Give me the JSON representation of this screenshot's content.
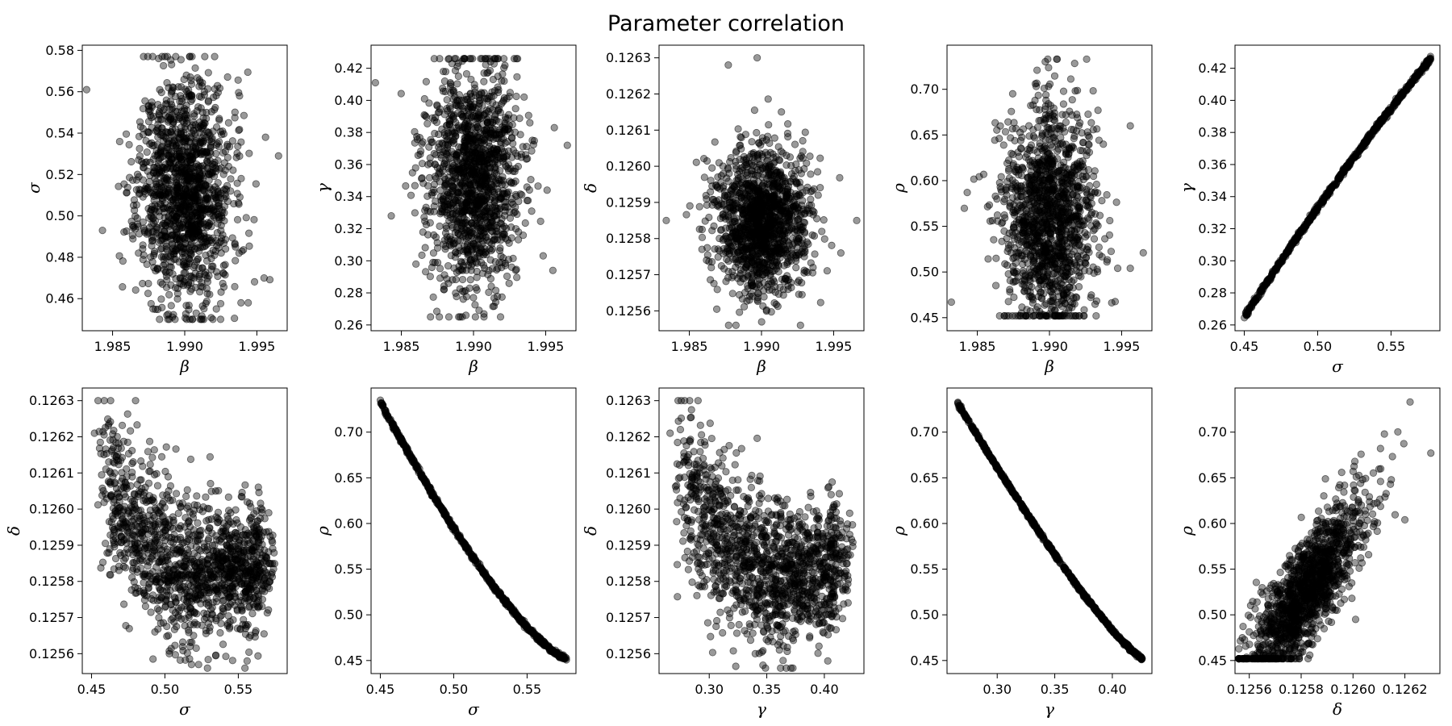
{
  "figure": {
    "title": "Parameter correlation"
  },
  "chart_data": [
    {
      "type": "scatter",
      "xlabel": "β",
      "ylabel": "σ",
      "xlim": [
        1.9829,
        1.9971
      ],
      "ylim": [
        0.4445,
        0.5825
      ],
      "xticks": [
        1.985,
        1.99,
        1.995
      ],
      "xtick_labels": [
        "1.985",
        "1.990",
        "1.995"
      ],
      "yticks": [
        0.46,
        0.48,
        0.5,
        0.52,
        0.54,
        0.56,
        0.58
      ],
      "ytick_labels": [
        "0.46",
        "0.48",
        "0.50",
        "0.52",
        "0.54",
        "0.56",
        "0.58"
      ],
      "gen": {
        "kind": "blob",
        "seed": 11,
        "n": 1400,
        "cx": 1.99,
        "sx": 0.0016,
        "cy": 0.512,
        "sy": 0.027,
        "ymin": 0.45,
        "ymax": 0.577
      },
      "points": [
        [
          1.9832,
          0.561
        ],
        [
          1.9965,
          0.529
        ],
        [
          1.9956,
          0.538
        ],
        [
          1.9955,
          0.47
        ],
        [
          1.9843,
          0.493
        ],
        [
          1.9938,
          0.558
        ],
        [
          1.9939,
          0.458
        ],
        [
          1.9944,
          0.458
        ]
      ]
    },
    {
      "type": "scatter",
      "xlabel": "β",
      "ylabel": "γ",
      "xlim": [
        1.9829,
        1.9971
      ],
      "ylim": [
        0.2564,
        0.4344
      ],
      "xticks": [
        1.985,
        1.99,
        1.995
      ],
      "xtick_labels": [
        "1.985",
        "1.990",
        "1.995"
      ],
      "yticks": [
        0.26,
        0.28,
        0.3,
        0.32,
        0.34,
        0.36,
        0.38,
        0.4,
        0.42
      ],
      "ytick_labels": [
        "0.26",
        "0.28",
        "0.30",
        "0.32",
        "0.34",
        "0.36",
        "0.38",
        "0.40",
        "0.42"
      ],
      "gen": {
        "kind": "blob",
        "seed": 23,
        "n": 1400,
        "cx": 1.99,
        "sx": 0.0016,
        "cy": 0.35,
        "sy": 0.035,
        "ymin": 0.265,
        "ymax": 0.426
      },
      "points": [
        [
          1.9832,
          0.411
        ],
        [
          1.9965,
          0.372
        ],
        [
          1.9956,
          0.383
        ],
        [
          1.9955,
          0.294
        ],
        [
          1.9843,
          0.328
        ],
        [
          1.9951,
          0.344
        ]
      ]
    },
    {
      "type": "scatter",
      "xlabel": "β",
      "ylabel": "δ",
      "xlim": [
        1.9829,
        1.9971
      ],
      "ylim": [
        0.125545,
        0.126335
      ],
      "xticks": [
        1.985,
        1.99,
        1.995
      ],
      "xtick_labels": [
        "1.985",
        "1.990",
        "1.995"
      ],
      "yticks": [
        0.1256,
        0.1257,
        0.1258,
        0.1259,
        0.126,
        0.1261,
        0.1262,
        0.1263
      ],
      "ytick_labels": [
        "0.1256",
        "0.1257",
        "0.1258",
        "0.1259",
        "0.1260",
        "0.1261",
        "0.1262",
        "0.1263"
      ],
      "gen": {
        "kind": "blob",
        "seed": 37,
        "n": 1400,
        "cx": 1.99,
        "sx": 0.0016,
        "cy": 0.12585,
        "sy": 0.0001,
        "ymin": 0.12556,
        "ymax": 0.1263
      },
      "points": [
        [
          1.9897,
          0.1263
        ],
        [
          1.9877,
          0.12628
        ],
        [
          1.9834,
          0.12585
        ],
        [
          1.9966,
          0.12585
        ],
        [
          1.9955,
          0.12576
        ],
        [
          1.9927,
          0.12556
        ]
      ]
    },
    {
      "type": "scatter",
      "xlabel": "β",
      "ylabel": "ρ",
      "xlim": [
        1.9829,
        1.9971
      ],
      "ylim": [
        0.4357,
        0.7483
      ],
      "xticks": [
        1.985,
        1.99,
        1.995
      ],
      "xtick_labels": [
        "1.985",
        "1.990",
        "1.995"
      ],
      "yticks": [
        0.45,
        0.5,
        0.55,
        0.6,
        0.65,
        0.7
      ],
      "ytick_labels": [
        "0.45",
        "0.50",
        "0.55",
        "0.60",
        "0.65",
        "0.70"
      ],
      "gen": {
        "kind": "blob",
        "seed": 41,
        "n": 1400,
        "cx": 1.99,
        "sx": 0.0016,
        "cy": 0.56,
        "sy": 0.06,
        "ymin": 0.452,
        "ymax": 0.733
      },
      "points": [
        [
          1.9832,
          0.467
        ],
        [
          1.9965,
          0.521
        ],
        [
          1.9956,
          0.504
        ],
        [
          1.9956,
          0.66
        ],
        [
          1.9843,
          0.587
        ],
        [
          1.9905,
          0.733
        ]
      ]
    },
    {
      "type": "scatter",
      "xlabel": "σ",
      "ylabel": "γ",
      "xlim": [
        0.4437,
        0.5833
      ],
      "ylim": [
        0.2564,
        0.4344
      ],
      "xticks": [
        0.45,
        0.5,
        0.55
      ],
      "xtick_labels": [
        "0.45",
        "0.50",
        "0.55"
      ],
      "yticks": [
        0.26,
        0.28,
        0.3,
        0.32,
        0.34,
        0.36,
        0.38,
        0.4,
        0.42
      ],
      "ytick_labels": [
        "0.26",
        "0.28",
        "0.30",
        "0.32",
        "0.34",
        "0.36",
        "0.38",
        "0.40",
        "0.42"
      ],
      "gen": {
        "kind": "curve",
        "seed": 53,
        "n": 700,
        "xmin": 0.45,
        "xmax": 0.577,
        "f": "sg",
        "noise": 0.0008
      },
      "points": []
    },
    {
      "type": "scatter",
      "xlabel": "σ",
      "ylabel": "δ",
      "xlim": [
        0.4437,
        0.5833
      ],
      "ylim": [
        0.125545,
        0.126335
      ],
      "xticks": [
        0.45,
        0.5,
        0.55
      ],
      "xtick_labels": [
        "0.45",
        "0.50",
        "0.55"
      ],
      "yticks": [
        0.1256,
        0.1257,
        0.1258,
        0.1259,
        0.126,
        0.1261,
        0.1262,
        0.1263
      ],
      "ytick_labels": [
        "0.1256",
        "0.1257",
        "0.1258",
        "0.1259",
        "0.1260",
        "0.1261",
        "0.1262",
        "0.1263"
      ],
      "gen": {
        "kind": "ushape",
        "seed": 61,
        "n": 1400,
        "xmin": 0.45,
        "xmax": 0.577,
        "f": "sd",
        "noise": 8e-05
      },
      "points": [
        [
          0.463,
          0.1263
        ],
        [
          0.452,
          0.12621
        ],
        [
          0.503,
          0.1256
        ],
        [
          0.529,
          0.12556
        ],
        [
          0.556,
          0.12558
        ]
      ]
    },
    {
      "type": "scatter",
      "xlabel": "σ",
      "ylabel": "ρ",
      "xlim": [
        0.4437,
        0.5833
      ],
      "ylim": [
        0.4357,
        0.7483
      ],
      "xticks": [
        0.45,
        0.5,
        0.55
      ],
      "xtick_labels": [
        "0.45",
        "0.50",
        "0.55"
      ],
      "yticks": [
        0.45,
        0.5,
        0.55,
        0.6,
        0.65,
        0.7
      ],
      "ytick_labels": [
        "0.45",
        "0.50",
        "0.55",
        "0.60",
        "0.65",
        "0.70"
      ],
      "gen": {
        "kind": "curve",
        "seed": 71,
        "n": 700,
        "xmin": 0.45,
        "xmax": 0.577,
        "f": "sr",
        "noise": 0.0012
      },
      "points": []
    },
    {
      "type": "scatter",
      "xlabel": "γ",
      "ylabel": "δ",
      "xlim": [
        0.2564,
        0.4344
      ],
      "ylim": [
        0.125545,
        0.126335
      ],
      "xticks": [
        0.3,
        0.35,
        0.4
      ],
      "xtick_labels": [
        "0.30",
        "0.35",
        "0.40"
      ],
      "yticks": [
        0.1256,
        0.1257,
        0.1258,
        0.1259,
        0.126,
        0.1261,
        0.1262,
        0.1263
      ],
      "ytick_labels": [
        "0.1256",
        "0.1257",
        "0.1258",
        "0.1259",
        "0.1260",
        "0.1261",
        "0.1262",
        "0.1263"
      ],
      "gen": {
        "kind": "ushape",
        "seed": 83,
        "n": 1400,
        "xmin": 0.265,
        "xmax": 0.426,
        "f": "gd",
        "noise": 8e-05
      },
      "points": [
        [
          0.283,
          0.1263
        ],
        [
          0.266,
          0.12621
        ],
        [
          0.34,
          0.1256
        ],
        [
          0.371,
          0.12556
        ],
        [
          0.403,
          0.12558
        ]
      ]
    },
    {
      "type": "scatter",
      "xlabel": "γ",
      "ylabel": "ρ",
      "xlim": [
        0.2564,
        0.4344
      ],
      "ylim": [
        0.4357,
        0.7483
      ],
      "xticks": [
        0.3,
        0.35,
        0.4
      ],
      "xtick_labels": [
        "0.30",
        "0.35",
        "0.40"
      ],
      "yticks": [
        0.45,
        0.5,
        0.55,
        0.6,
        0.65,
        0.7
      ],
      "ytick_labels": [
        "0.45",
        "0.50",
        "0.55",
        "0.60",
        "0.65",
        "0.70"
      ],
      "gen": {
        "kind": "curve",
        "seed": 97,
        "n": 700,
        "xmin": 0.265,
        "xmax": 0.426,
        "f": "gr",
        "noise": 0.001
      },
      "points": []
    },
    {
      "type": "scatter",
      "xlabel": "δ",
      "ylabel": "ρ",
      "xlim": [
        0.125545,
        0.126335
      ],
      "ylim": [
        0.4357,
        0.7483
      ],
      "xticks": [
        0.1256,
        0.1258,
        0.126,
        0.1262
      ],
      "xtick_labels": [
        "0.1256",
        "0.1258",
        "0.1260",
        "0.1262"
      ],
      "yticks": [
        0.45,
        0.5,
        0.55,
        0.6,
        0.65,
        0.7
      ],
      "ytick_labels": [
        "0.45",
        "0.50",
        "0.55",
        "0.60",
        "0.65",
        "0.70"
      ],
      "gen": {
        "kind": "linear",
        "seed": 101,
        "n": 1400,
        "xmin": 0.12556,
        "xmax": 0.1263,
        "f": "dr",
        "noise": 0.03
      },
      "points": [
        [
          0.12563,
          0.514
        ],
        [
          0.12622,
          0.733
        ],
        [
          0.1263,
          0.677
        ],
        [
          0.1262,
          0.604
        ],
        [
          0.12601,
          0.495
        ]
      ]
    }
  ]
}
